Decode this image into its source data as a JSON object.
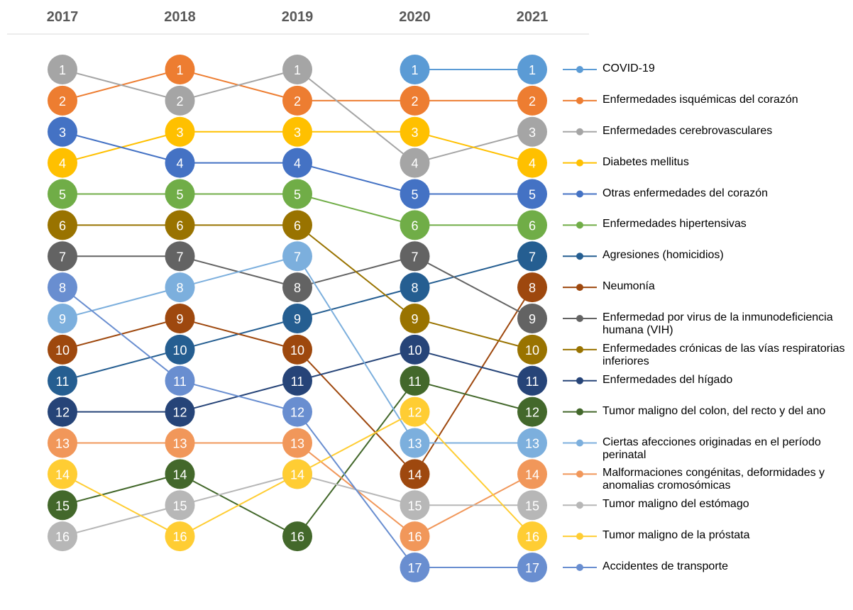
{
  "chart_data": {
    "type": "bump",
    "x": [
      "2017",
      "2018",
      "2019",
      "2020",
      "2021"
    ],
    "ylim": [
      1,
      17
    ],
    "series": [
      {
        "name": "COVID-19",
        "color": "#5b9bd5",
        "values": [
          null,
          null,
          null,
          1,
          1
        ]
      },
      {
        "name": "Enfermedades isquémicas del corazón",
        "color": "#ed7d31",
        "values": [
          2,
          1,
          2,
          2,
          2
        ]
      },
      {
        "name": "Enfermedades cerebrovasculares",
        "color": "#a5a5a5",
        "values": [
          1,
          2,
          1,
          4,
          3
        ]
      },
      {
        "name": "Diabetes mellitus",
        "color": "#ffc000",
        "values": [
          4,
          3,
          3,
          3,
          4
        ]
      },
      {
        "name": "Otras enfermedades del corazón",
        "color": "#4472c4",
        "values": [
          3,
          4,
          4,
          5,
          5
        ]
      },
      {
        "name": "Enfermedades hipertensivas",
        "color": "#70ad47",
        "values": [
          5,
          5,
          5,
          6,
          6
        ]
      },
      {
        "name": "Agresiones (homicidios)",
        "color": "#255e91",
        "values": [
          11,
          10,
          9,
          8,
          7
        ]
      },
      {
        "name": "Neumonía",
        "color": "#9e480e",
        "values": [
          10,
          9,
          10,
          14,
          8
        ]
      },
      {
        "name": "Enfermedad por virus de la inmunodeficiencia humana (VIH)",
        "color": "#636363",
        "values": [
          7,
          7,
          8,
          7,
          9
        ]
      },
      {
        "name": "Enfermedades crónicas de las vías respiratorias inferiores",
        "color": "#997300",
        "values": [
          6,
          6,
          6,
          9,
          10
        ]
      },
      {
        "name": "Enfermedades del hígado",
        "color": "#264478",
        "values": [
          12,
          12,
          11,
          10,
          11
        ]
      },
      {
        "name": "Tumor maligno del colon, del recto y del ano",
        "color": "#43682b",
        "values": [
          15,
          14,
          16,
          11,
          12
        ]
      },
      {
        "name": "Ciertas afecciones originadas en el período perinatal",
        "color": "#7cafdd",
        "values": [
          9,
          8,
          7,
          13,
          13
        ]
      },
      {
        "name": "Malformaciones congénitas, deformidades y anomalias cromosómicas",
        "color": "#f1975a",
        "values": [
          13,
          13,
          13,
          16,
          14
        ]
      },
      {
        "name": "Tumor maligno del estómago",
        "color": "#b7b7b7",
        "values": [
          16,
          15,
          14,
          15,
          15
        ]
      },
      {
        "name": "Tumor maligno de la próstata",
        "color": "#ffcd33",
        "values": [
          14,
          16,
          14,
          12,
          16
        ]
      },
      {
        "name": "Accidentes de transporte",
        "color": "#698ed0",
        "values": [
          8,
          11,
          12,
          17,
          17
        ]
      }
    ]
  }
}
